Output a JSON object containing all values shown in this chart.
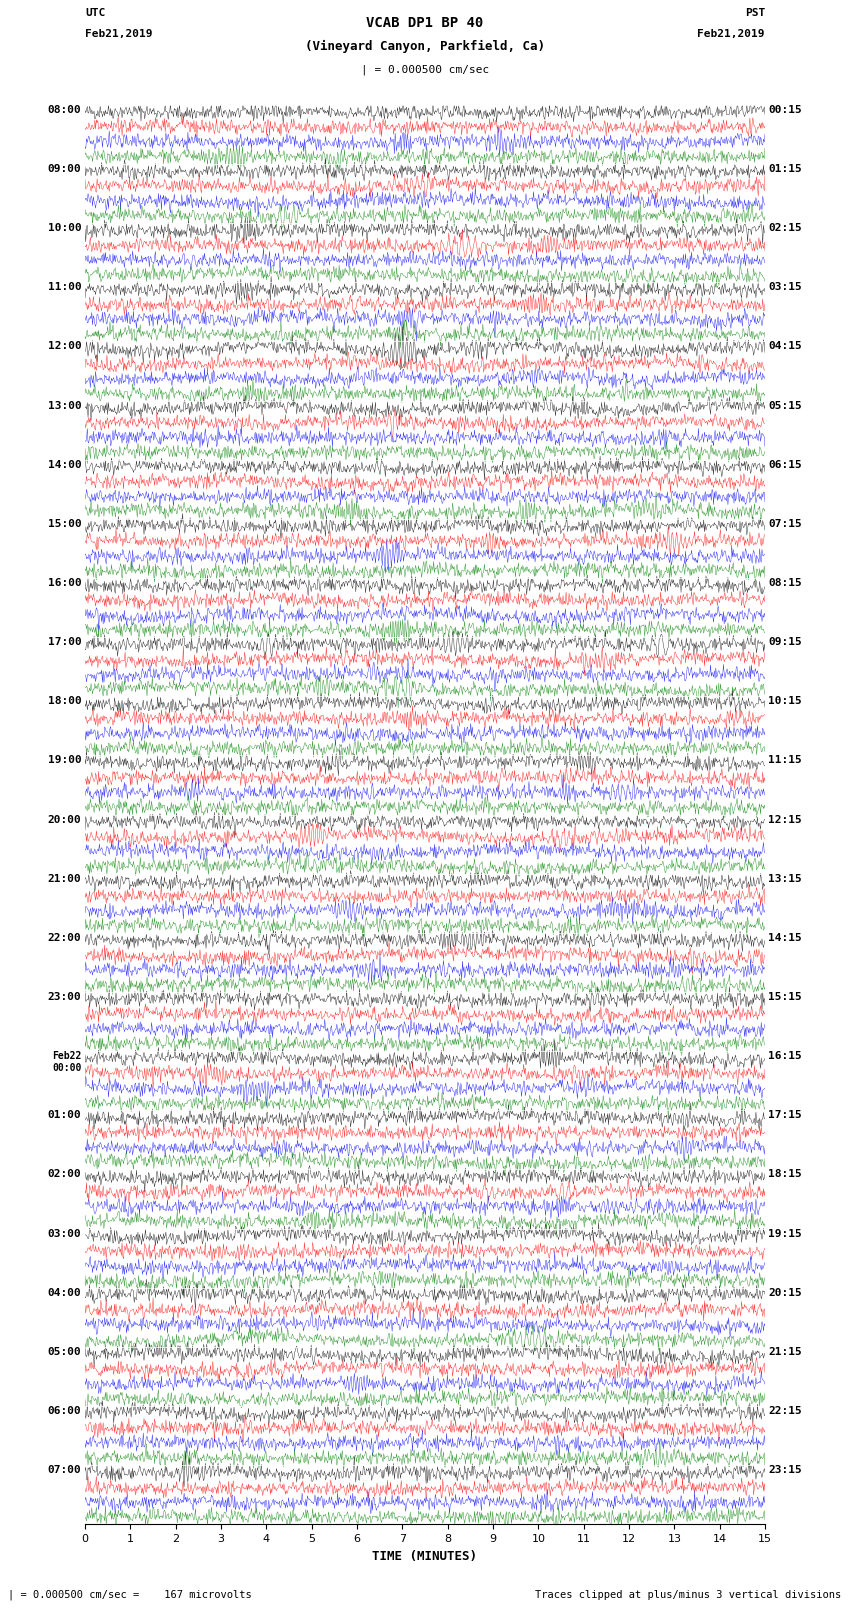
{
  "title_line1": "VCAB DP1 BP 40",
  "title_line2": "(Vineyard Canyon, Parkfield, Ca)",
  "scale_label": "| = 0.000500 cm/sec",
  "left_label_top": "UTC",
  "left_label_date": "Feb21,2019",
  "right_label_top": "PST",
  "right_label_date": "Feb21,2019",
  "bottom_xlabel": "TIME (MINUTES)",
  "bottom_note_left": "| = 0.000500 cm/sec =    167 microvolts",
  "bottom_note_right": "Traces clipped at plus/minus 3 vertical divisions",
  "utc_times_left": [
    "08:00",
    "09:00",
    "10:00",
    "11:00",
    "12:00",
    "13:00",
    "14:00",
    "15:00",
    "16:00",
    "17:00",
    "18:00",
    "19:00",
    "20:00",
    "21:00",
    "22:00",
    "23:00",
    "Feb22\n00:00",
    "01:00",
    "02:00",
    "03:00",
    "04:00",
    "05:00",
    "06:00",
    "07:00"
  ],
  "pst_times_right": [
    "00:15",
    "01:15",
    "02:15",
    "03:15",
    "04:15",
    "05:15",
    "06:15",
    "07:15",
    "08:15",
    "09:15",
    "10:15",
    "11:15",
    "12:15",
    "13:15",
    "14:15",
    "15:15",
    "16:15",
    "17:15",
    "18:15",
    "19:15",
    "20:15",
    "21:15",
    "22:15",
    "23:15"
  ],
  "n_rows": 24,
  "traces_per_row": 4,
  "colors": [
    "black",
    "red",
    "blue",
    "green"
  ],
  "xlim": [
    0,
    15
  ],
  "xticks": [
    0,
    1,
    2,
    3,
    4,
    5,
    6,
    7,
    8,
    9,
    10,
    11,
    12,
    13,
    14,
    15
  ],
  "bg_color": "white",
  "fig_width": 8.5,
  "fig_height": 16.13,
  "dpi": 100,
  "amplitude_scale": 0.4,
  "noise_amplitude": 0.25,
  "seed": 42
}
